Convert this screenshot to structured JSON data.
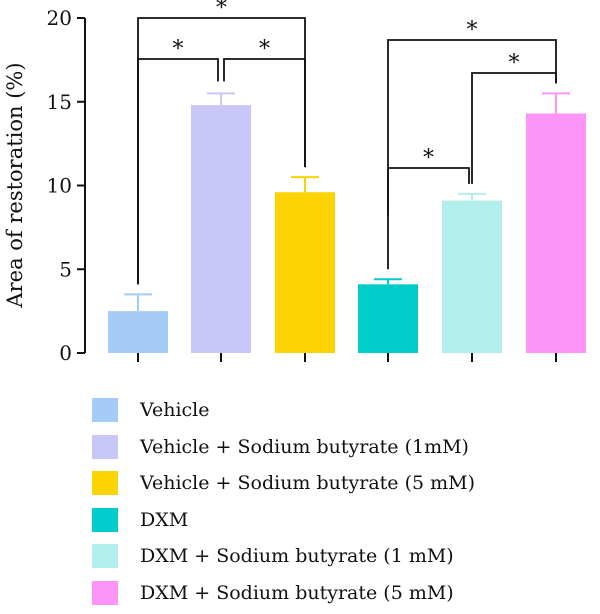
{
  "chart_data": {
    "type": "bar",
    "title": "",
    "xlabel": "",
    "ylabel": "Area of restoration (%)",
    "ylim": [
      0,
      20
    ],
    "yticks": [
      0,
      5,
      10,
      15,
      20
    ],
    "grid": false,
    "legend_position": "bottom",
    "series": [
      {
        "name": "Vehicle",
        "value": 2.5,
        "error": 1.0,
        "color": "#A5CBF7"
      },
      {
        "name": "Vehicle + Sodium butyrate (1mM)",
        "value": 14.8,
        "error": 0.7,
        "color": "#C9C7F8"
      },
      {
        "name": "Vehicle + Sodium butyrate (5 mM)",
        "value": 9.6,
        "error": 0.9,
        "color": "#FCD305"
      },
      {
        "name": "DXM",
        "value": 4.1,
        "error": 0.3,
        "color": "#00CDC9"
      },
      {
        "name": "DXM + Sodium butyrate (1 mM)",
        "value": 9.1,
        "error": 0.4,
        "color": "#B2EEEC"
      },
      {
        "name": "DXM + Sodium butyrate (5 mM)",
        "value": 14.3,
        "error": 1.2,
        "color": "#FC95F7"
      }
    ],
    "significance": [
      {
        "from": 0,
        "to": 2,
        "label": "*"
      },
      {
        "from": 0,
        "to": 1,
        "label": "*"
      },
      {
        "from": 1,
        "to": 2,
        "label": "*"
      },
      {
        "from": 3,
        "to": 5,
        "label": "*"
      },
      {
        "from": 4,
        "to": 5,
        "label": "*"
      },
      {
        "from": 3,
        "to": 4,
        "label": "*"
      }
    ]
  }
}
